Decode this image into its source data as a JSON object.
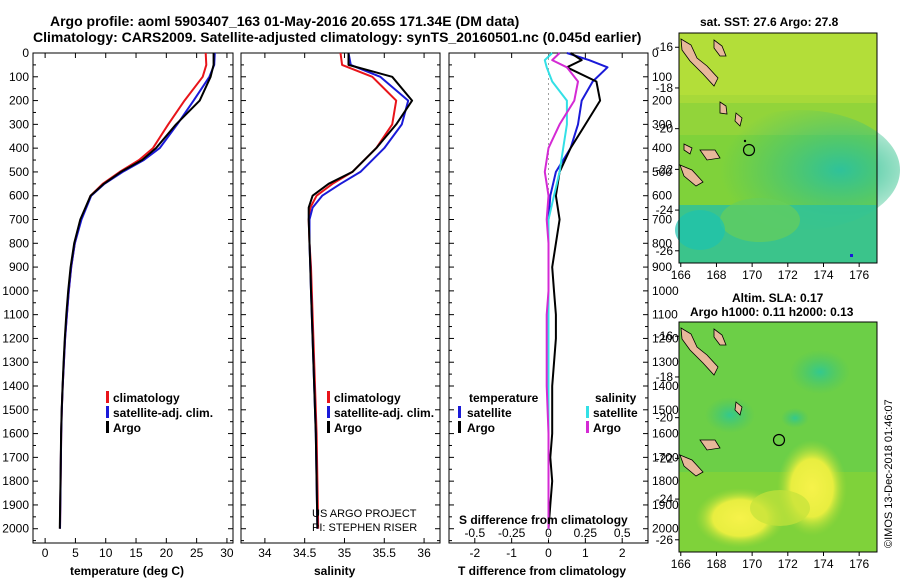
{
  "header": {
    "title_line1": "Argo profile: aoml 5903407_163 01-May-2016 20.65S 171.34E (DM data)",
    "title_line2": "Climatology: CARS2009. Satellite-adjusted climatology: synTS_20160501.nc (0.045d earlier)"
  },
  "colors": {
    "climatology": "#e8141a",
    "satellite": "#1a1ad8",
    "argo": "#000000",
    "sal_satellite": "#33e0e6",
    "sal_argo": "#d42ad4"
  },
  "credits": {
    "line1": "US ARGO PROJECT",
    "line2": "PI: STEPHEN RISER"
  },
  "right_panels": {
    "sst_title": "sat. SST: 27.6 Argo: 27.8",
    "sla_title1": "Altim. SLA: 0.17",
    "sla_title2": "Argo h1000: 0.11 h2000: 0.13",
    "watermark": "©IMOS 13-Dec-2018 01:46:07",
    "lat_ticks": [
      "-16",
      "-18",
      "-20",
      "-22",
      "-24",
      "-26"
    ],
    "lon_ticks": [
      "166",
      "168",
      "170",
      "172",
      "174",
      "176"
    ],
    "float_lon": 171.34,
    "float_lat": -20.65
  },
  "chart_data": [
    {
      "type": "line",
      "xlabel": "temperature (deg C)",
      "ylabel": "",
      "xlim": [
        -2,
        31
      ],
      "ylim": [
        2060,
        0
      ],
      "xticks": [
        "0",
        "5",
        "10",
        "15",
        "20",
        "25",
        "30"
      ],
      "yticks": [
        "0",
        "100",
        "200",
        "300",
        "400",
        "500",
        "600",
        "700",
        "800",
        "900",
        "1000",
        "1100",
        "1200",
        "1300",
        "1400",
        "1500",
        "1600",
        "1700",
        "1800",
        "1900",
        "2000"
      ],
      "legend": [
        "climatology",
        "satellite-adj. clim.",
        "Argo"
      ],
      "series": [
        {
          "name": "climatology",
          "x": [
            26.5,
            26.6,
            26.0,
            23.0,
            20.3,
            17.8,
            15.5,
            12.3,
            9.5,
            7.5,
            5.9,
            4.9,
            4.3,
            3.9,
            3.6,
            3.3,
            3.1,
            2.9,
            2.75,
            2.65,
            2.55,
            2.45
          ],
          "y": [
            0,
            50,
            100,
            200,
            300,
            400,
            450,
            500,
            550,
            600,
            700,
            800,
            900,
            1000,
            1100,
            1200,
            1300,
            1400,
            1500,
            1600,
            1800,
            2000
          ]
        },
        {
          "name": "satellite-adj. clim.",
          "x": [
            28.0,
            27.9,
            27.1,
            24.5,
            21.8,
            18.9,
            16.3,
            12.8,
            9.8,
            7.6,
            6.0,
            4.9,
            4.3,
            3.9,
            3.6,
            3.3,
            3.1,
            2.9,
            2.75,
            2.65,
            2.55,
            2.45
          ],
          "y": [
            0,
            50,
            100,
            200,
            300,
            400,
            450,
            500,
            550,
            600,
            700,
            800,
            900,
            1000,
            1100,
            1200,
            1300,
            1400,
            1500,
            1600,
            1800,
            2000
          ]
        },
        {
          "name": "Argo",
          "x": [
            27.8,
            27.8,
            27.3,
            25.5,
            21.6,
            18.3,
            16.0,
            12.5,
            9.7,
            7.5,
            5.8,
            4.8,
            4.2,
            3.8,
            3.5,
            3.25,
            3.05,
            2.88,
            2.74,
            2.63,
            2.53,
            2.43
          ],
          "y": [
            0,
            50,
            100,
            200,
            300,
            400,
            450,
            500,
            550,
            600,
            700,
            800,
            900,
            1000,
            1100,
            1200,
            1300,
            1400,
            1500,
            1600,
            1800,
            2000
          ]
        }
      ]
    },
    {
      "type": "line",
      "xlabel": "salinity",
      "ylabel": "",
      "xlim": [
        33.7,
        36.2
      ],
      "ylim": [
        2060,
        0
      ],
      "xticks": [
        "34",
        "34.5",
        "35",
        "35.5",
        "36"
      ],
      "legend": [
        "climatology",
        "satellite-adj. clim.",
        "Argo"
      ],
      "series": [
        {
          "name": "climatology",
          "x": [
            34.95,
            34.97,
            35.35,
            35.65,
            35.6,
            35.4,
            35.1,
            34.85,
            34.65,
            34.57,
            34.55,
            34.56,
            34.58,
            34.59,
            34.6,
            34.61,
            34.62,
            34.63,
            34.64,
            34.65,
            34.66,
            34.67
          ],
          "y": [
            0,
            50,
            100,
            200,
            300,
            400,
            500,
            550,
            600,
            650,
            700,
            800,
            900,
            1000,
            1100,
            1200,
            1300,
            1400,
            1500,
            1600,
            1800,
            2000
          ]
        },
        {
          "name": "satellite-adj. clim.",
          "x": [
            35.05,
            35.08,
            35.45,
            35.8,
            35.72,
            35.5,
            35.2,
            34.95,
            34.72,
            34.6,
            34.56,
            34.56,
            34.57,
            34.58,
            34.59,
            34.6,
            34.61,
            34.62,
            34.63,
            34.64,
            34.65,
            34.66
          ],
          "y": [
            0,
            50,
            100,
            200,
            300,
            400,
            500,
            550,
            600,
            650,
            700,
            800,
            900,
            1000,
            1100,
            1200,
            1300,
            1400,
            1500,
            1600,
            1800,
            2000
          ]
        },
        {
          "name": "Argo",
          "x": [
            35.05,
            35.05,
            35.6,
            35.85,
            35.65,
            35.4,
            35.1,
            34.8,
            34.6,
            34.55,
            34.55,
            34.56,
            34.57,
            34.58,
            34.59,
            34.6,
            34.61,
            34.62,
            34.63,
            34.64,
            34.65,
            34.66
          ],
          "y": [
            0,
            50,
            100,
            200,
            300,
            400,
            500,
            550,
            600,
            650,
            700,
            800,
            900,
            1000,
            1100,
            1200,
            1300,
            1400,
            1500,
            1600,
            1800,
            2000
          ]
        }
      ]
    },
    {
      "type": "line",
      "xlabel": "T difference from climatology",
      "xlabel_top": "S difference from climatology",
      "xlim": [
        -2.7,
        2.7
      ],
      "ylim": [
        2060,
        0
      ],
      "xticks": [
        "-2",
        "-1",
        "0",
        "1",
        "2"
      ],
      "xticks_top": [
        "-0.5",
        "-0.25",
        "0",
        "0.25",
        "0.5"
      ],
      "legend_left_title": "temperature",
      "legend_right_title": "salinity",
      "legend": [
        "satellite",
        "Argo",
        "satellite",
        "Argo"
      ],
      "series": [
        {
          "name": "satellite",
          "x": [
            0.5,
            1.1,
            1.6,
            1.2,
            0.9,
            0.8,
            0.6,
            0.2,
            0.05,
            0.0,
            0.0,
            0.0,
            0.0,
            0.0,
            0.0,
            0.0,
            0.0,
            0.0,
            0.0,
            0.0,
            0.0
          ],
          "y": [
            0,
            30,
            60,
            120,
            200,
            300,
            400,
            500,
            600,
            700,
            800,
            900,
            1000,
            1100,
            1200,
            1400,
            1600,
            1700,
            1800,
            1900,
            2000
          ]
        },
        {
          "name": "Argo",
          "x": [
            0.6,
            0.9,
            0.5,
            1.3,
            1.4,
            1.0,
            0.6,
            0.3,
            0.2,
            0.3,
            0.2,
            0.1,
            0.15,
            0.2,
            0.2,
            0.1,
            0.1,
            0.05,
            0.1,
            0.05,
            0.0
          ],
          "y": [
            0,
            30,
            60,
            120,
            200,
            300,
            400,
            500,
            600,
            700,
            800,
            900,
            1000,
            1100,
            1200,
            1400,
            1600,
            1700,
            1800,
            1900,
            2000
          ]
        },
        {
          "name": "satellite",
          "x": [
            0.1,
            -0.1,
            -0.05,
            0.1,
            0.5,
            0.5,
            0.4,
            0.3,
            0.15,
            0.0,
            0.0,
            0.0,
            0.0,
            0.0,
            0.0,
            0.0,
            0.0,
            0.0,
            0.0,
            0.0,
            0.0
          ],
          "y": [
            0,
            30,
            60,
            120,
            200,
            300,
            400,
            500,
            600,
            700,
            800,
            900,
            1000,
            1100,
            1200,
            1400,
            1600,
            1700,
            1800,
            1900,
            2000
          ]
        },
        {
          "name": "Argo",
          "x": [
            0.3,
            0.1,
            0.5,
            0.8,
            0.7,
            0.3,
            0.0,
            -0.1,
            0.0,
            -0.05,
            0.0,
            0.0,
            0.0,
            -0.05,
            -0.05,
            -0.05,
            0.0,
            0.0,
            0.0,
            0.0,
            0.0
          ],
          "y": [
            0,
            30,
            60,
            120,
            200,
            300,
            400,
            500,
            600,
            700,
            800,
            900,
            1000,
            1100,
            1200,
            1400,
            1600,
            1700,
            1800,
            1900,
            2000
          ]
        }
      ]
    }
  ]
}
